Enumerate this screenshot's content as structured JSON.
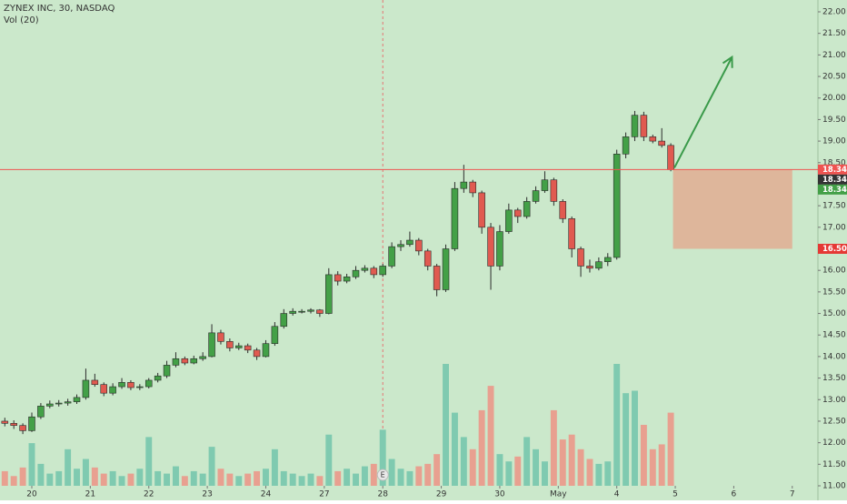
{
  "chart_data": {
    "type": "candlestick",
    "title": "ZYNEX INC, 30, NASDAQ",
    "subtitle": "Vol (20)",
    "background": "#cbe8cb",
    "up_color": "#43a047",
    "down_color": "#e05a50",
    "wick_color": "#2b2b2b",
    "volume_up_color": "#7fcab0",
    "volume_down_color": "#e8a090",
    "xlim": [
      -7.07,
      174.7
    ],
    "ylim": [
      11,
      22
    ],
    "vlim": [
      0,
      100
    ],
    "xticks": [
      {
        "value": 0,
        "label": "20"
      },
      {
        "value": 13,
        "label": "21"
      },
      {
        "value": 26,
        "label": "22"
      },
      {
        "value": 39,
        "label": "23"
      },
      {
        "value": 52,
        "label": "24"
      },
      {
        "value": 65,
        "label": "27"
      },
      {
        "value": 78,
        "label": "28"
      },
      {
        "value": 91,
        "label": "29"
      },
      {
        "value": 104,
        "label": "30"
      },
      {
        "value": 117,
        "label": "May"
      },
      {
        "value": 130,
        "label": "4"
      },
      {
        "value": 143,
        "label": "5"
      },
      {
        "value": 156,
        "label": "6"
      },
      {
        "value": 169,
        "label": "7"
      }
    ],
    "yticks": [
      {
        "value": 11,
        "label": "11.00"
      },
      {
        "value": 11.5,
        "label": "11.50"
      },
      {
        "value": 12,
        "label": "12.00"
      },
      {
        "value": 12.5,
        "label": "12.50"
      },
      {
        "value": 13,
        "label": "13.00"
      },
      {
        "value": 13.5,
        "label": "13.50"
      },
      {
        "value": 14,
        "label": "14.00"
      },
      {
        "value": 14.5,
        "label": "14.50"
      },
      {
        "value": 15,
        "label": "15.00"
      },
      {
        "value": 15.5,
        "label": "15.50"
      },
      {
        "value": 16,
        "label": "16.00"
      },
      {
        "value": 16.5,
        "label": "16.50"
      },
      {
        "value": 17,
        "label": "17.00"
      },
      {
        "value": 17.5,
        "label": "17.50"
      },
      {
        "value": 18,
        "label": "18.00"
      },
      {
        "value": 18.5,
        "label": "18.50"
      },
      {
        "value": 19,
        "label": "19.00"
      },
      {
        "value": 19.5,
        "label": "19.50"
      },
      {
        "value": 20,
        "label": "20.00"
      },
      {
        "value": 20.5,
        "label": "20.50"
      },
      {
        "value": 21,
        "label": "21.00"
      },
      {
        "value": 21.5,
        "label": "21.50"
      },
      {
        "value": 22,
        "label": "22.00"
      }
    ],
    "x": [
      -6,
      -4,
      -2,
      0,
      2,
      4,
      6,
      8,
      10,
      12,
      14,
      16,
      18,
      20,
      22,
      24,
      26,
      28,
      30,
      32,
      34,
      36,
      38,
      40,
      42,
      44,
      46,
      48,
      50,
      52,
      54,
      56,
      58,
      60,
      62,
      64,
      66,
      68,
      70,
      72,
      74,
      76,
      78,
      80,
      82,
      84,
      86,
      88,
      90,
      92,
      94,
      96,
      98,
      100,
      102,
      104,
      106,
      108,
      110,
      112,
      114,
      116,
      118,
      120,
      122,
      124,
      126,
      128,
      130,
      132,
      134,
      136,
      138,
      140,
      142
    ],
    "ohlc": [
      [
        12.5,
        12.58,
        12.38,
        12.45
      ],
      [
        12.45,
        12.52,
        12.32,
        12.4
      ],
      [
        12.4,
        12.45,
        12.2,
        12.28
      ],
      [
        12.28,
        12.7,
        12.25,
        12.6
      ],
      [
        12.6,
        12.92,
        12.55,
        12.85
      ],
      [
        12.85,
        12.98,
        12.8,
        12.9
      ],
      [
        12.9,
        12.99,
        12.84,
        12.92
      ],
      [
        12.92,
        13.02,
        12.86,
        12.95
      ],
      [
        12.95,
        13.12,
        12.9,
        13.05
      ],
      [
        13.05,
        13.72,
        13.0,
        13.45
      ],
      [
        13.45,
        13.6,
        13.3,
        13.35
      ],
      [
        13.35,
        13.4,
        13.08,
        13.15
      ],
      [
        13.15,
        13.38,
        13.1,
        13.3
      ],
      [
        13.3,
        13.5,
        13.25,
        13.4
      ],
      [
        13.4,
        13.45,
        13.22,
        13.28
      ],
      [
        13.28,
        13.36,
        13.22,
        13.3
      ],
      [
        13.3,
        13.5,
        13.26,
        13.45
      ],
      [
        13.45,
        13.62,
        13.4,
        13.55
      ],
      [
        13.55,
        13.9,
        13.5,
        13.8
      ],
      [
        13.8,
        14.1,
        13.75,
        13.95
      ],
      [
        13.95,
        14.0,
        13.8,
        13.85
      ],
      [
        13.85,
        14.02,
        13.82,
        13.95
      ],
      [
        13.95,
        14.1,
        13.9,
        14.0
      ],
      [
        14.0,
        14.75,
        13.98,
        14.55
      ],
      [
        14.55,
        14.62,
        14.28,
        14.35
      ],
      [
        14.35,
        14.42,
        14.12,
        14.2
      ],
      [
        14.2,
        14.32,
        14.15,
        14.25
      ],
      [
        14.25,
        14.3,
        14.08,
        14.15
      ],
      [
        14.15,
        14.2,
        13.92,
        14.0
      ],
      [
        14.0,
        14.38,
        13.98,
        14.3
      ],
      [
        14.3,
        14.8,
        14.25,
        14.7
      ],
      [
        14.7,
        15.1,
        14.65,
        15.0
      ],
      [
        15.0,
        15.12,
        14.95,
        15.05
      ],
      [
        15.05,
        15.1,
        15.0,
        15.05
      ],
      [
        15.05,
        15.12,
        15.0,
        15.08
      ],
      [
        15.08,
        15.1,
        14.92,
        15.0
      ],
      [
        15.0,
        16.05,
        14.98,
        15.9
      ],
      [
        15.9,
        15.98,
        15.65,
        15.75
      ],
      [
        15.75,
        15.92,
        15.7,
        15.85
      ],
      [
        15.85,
        16.1,
        15.8,
        16.0
      ],
      [
        16.0,
        16.12,
        15.95,
        16.05
      ],
      [
        16.05,
        16.1,
        15.82,
        15.9
      ],
      [
        15.9,
        16.15,
        15.85,
        16.1
      ],
      [
        16.1,
        16.65,
        16.05,
        16.55
      ],
      [
        16.55,
        16.7,
        16.45,
        16.6
      ],
      [
        16.6,
        16.9,
        16.55,
        16.7
      ],
      [
        16.7,
        16.75,
        16.35,
        16.45
      ],
      [
        16.45,
        16.5,
        16.0,
        16.1
      ],
      [
        16.1,
        16.15,
        15.4,
        15.55
      ],
      [
        15.55,
        16.6,
        15.5,
        16.5
      ],
      [
        16.5,
        18.05,
        16.45,
        17.9
      ],
      [
        17.9,
        18.45,
        17.8,
        18.05
      ],
      [
        18.05,
        18.1,
        17.7,
        17.8
      ],
      [
        17.8,
        17.85,
        16.85,
        17.0
      ],
      [
        17.0,
        17.1,
        15.55,
        16.1
      ],
      [
        16.1,
        17.05,
        16.0,
        16.9
      ],
      [
        16.9,
        17.55,
        16.85,
        17.4
      ],
      [
        17.4,
        17.45,
        17.1,
        17.25
      ],
      [
        17.25,
        17.7,
        17.2,
        17.6
      ],
      [
        17.6,
        17.95,
        17.55,
        17.85
      ],
      [
        17.85,
        18.3,
        17.8,
        18.1
      ],
      [
        18.1,
        18.15,
        17.5,
        17.6
      ],
      [
        17.6,
        17.65,
        17.1,
        17.2
      ],
      [
        17.2,
        17.25,
        16.3,
        16.5
      ],
      [
        16.5,
        16.55,
        15.85,
        16.1
      ],
      [
        16.1,
        16.25,
        15.95,
        16.05
      ],
      [
        16.05,
        16.3,
        16.0,
        16.2
      ],
      [
        16.2,
        16.4,
        16.1,
        16.3
      ],
      [
        16.3,
        18.8,
        16.25,
        18.7
      ],
      [
        18.7,
        19.2,
        18.6,
        19.1
      ],
      [
        19.1,
        19.7,
        19.0,
        19.6
      ],
      [
        19.6,
        19.68,
        19.0,
        19.1
      ],
      [
        19.1,
        19.15,
        18.95,
        19.0
      ],
      [
        19.0,
        19.3,
        18.85,
        18.9
      ],
      [
        18.9,
        18.95,
        18.3,
        18.34
      ]
    ],
    "volume": [
      12,
      8,
      15,
      35,
      18,
      10,
      12,
      30,
      14,
      22,
      15,
      10,
      12,
      8,
      10,
      14,
      40,
      12,
      10,
      16,
      8,
      12,
      10,
      32,
      14,
      10,
      8,
      10,
      12,
      14,
      30,
      12,
      10,
      8,
      10,
      8,
      42,
      12,
      14,
      10,
      16,
      18,
      46,
      22,
      14,
      12,
      16,
      18,
      26,
      100,
      60,
      40,
      30,
      62,
      82,
      26,
      20,
      24,
      40,
      30,
      20,
      62,
      38,
      42,
      30,
      22,
      18,
      20,
      100,
      76,
      78,
      50,
      30,
      34,
      60
    ],
    "price_line": {
      "value": 18.34,
      "color": "#ef5350"
    },
    "price_labels": [
      {
        "value": 18.34,
        "label": "18.34",
        "color": "#ef5350"
      },
      {
        "value": 18.34,
        "label": "18.34",
        "color": "#333333"
      },
      {
        "value": 18.34,
        "label": "18.34",
        "color": "#43a047"
      },
      {
        "value": 16.5,
        "label": "16.50",
        "color": "#e53935"
      }
    ],
    "zone": {
      "x": [
        142.5,
        169
      ],
      "y": [
        16.5,
        18.34
      ],
      "color": "#e2a98f"
    },
    "arrow": {
      "from": [
        142.8,
        18.38
      ],
      "to": [
        155.6,
        20.95
      ],
      "color": "#3a9a4a"
    },
    "crosshair_x": 78,
    "earnings": {
      "x": 78,
      "label": "E"
    }
  }
}
